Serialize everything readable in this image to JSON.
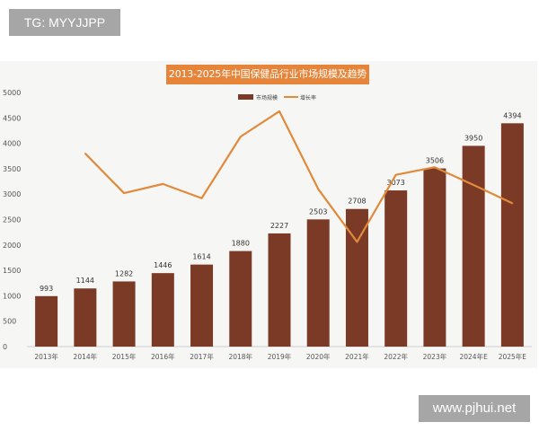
{
  "watermark_top": "TG: MYYJJPP",
  "watermark_bottom": "www.pjhui.net",
  "chart_data": {
    "type": "bar",
    "title": "2013-2025年中国保健品行业市场规模及趋势",
    "categories": [
      "2013年",
      "2014年",
      "2015年",
      "2016年",
      "2017年",
      "2018年",
      "2019年",
      "2020年",
      "2021年",
      "2022年",
      "2023年",
      "2024年E",
      "2025年E"
    ],
    "series": [
      {
        "name": "市场规模",
        "type": "bar",
        "color": "#7b3a26",
        "values": [
          993,
          1144,
          1282,
          1446,
          1614,
          1880,
          2227,
          2503,
          2708,
          3073,
          3506,
          3950,
          4394
        ],
        "labels": [
          "993",
          "1144",
          "1282",
          "1446",
          "1614",
          "1880",
          "2227",
          "2503",
          "2708",
          "3073",
          "3506",
          "3950",
          "4394"
        ]
      },
      {
        "name": "增长率",
        "type": "line",
        "color": "#e08a3c",
        "values": [
          null,
          3800,
          3020,
          3200,
          2920,
          4130,
          4630,
          3100,
          2060,
          3380,
          3530,
          3180,
          2820
        ]
      }
    ],
    "y_ticks": [
      "0",
      "500",
      "1000",
      "1500",
      "2000",
      "2500",
      "3000",
      "3500",
      "4000",
      "4500",
      "5000"
    ],
    "ylim": [
      0,
      5000
    ],
    "grid": false,
    "legend_position": "top"
  }
}
